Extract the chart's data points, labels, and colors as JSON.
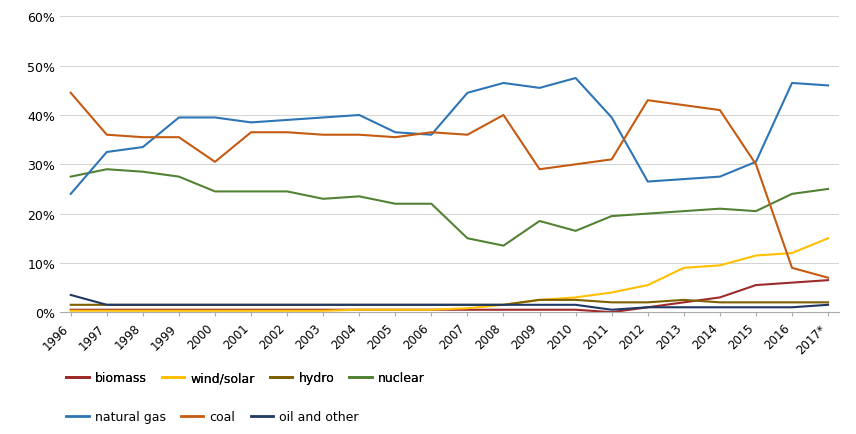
{
  "years": [
    1996,
    1997,
    1998,
    1999,
    2000,
    2001,
    2002,
    2003,
    2004,
    2005,
    2006,
    2007,
    2008,
    2009,
    2010,
    2011,
    2012,
    2013,
    2014,
    2015,
    2016,
    2017
  ],
  "year_labels": [
    "1996",
    "1997",
    "1998",
    "1999",
    "2000",
    "2001",
    "2002",
    "2003",
    "2004",
    "2005",
    "2006",
    "2007",
    "2008",
    "2009",
    "2010",
    "2011",
    "2012",
    "2013",
    "2014",
    "2015",
    "2016",
    "2017*"
  ],
  "series": [
    {
      "key": "biomass",
      "values": [
        0.5,
        0.5,
        0.5,
        0.5,
        0.5,
        0.5,
        0.5,
        0.5,
        0.5,
        0.5,
        0.5,
        0.5,
        0.5,
        0.5,
        0.5,
        0.0,
        1.0,
        2.0,
        3.0,
        5.5,
        6.0,
        6.5
      ],
      "color": "#9e2a2b",
      "label": "biomass"
    },
    {
      "key": "wind_solar",
      "values": [
        0.3,
        0.3,
        0.3,
        0.3,
        0.3,
        0.3,
        0.3,
        0.3,
        0.5,
        0.5,
        0.5,
        0.8,
        1.5,
        2.5,
        3.0,
        4.0,
        5.5,
        9.0,
        9.5,
        11.5,
        12.0,
        15.0
      ],
      "color": "#ffc000",
      "label": "wind/solar"
    },
    {
      "key": "hydro",
      "values": [
        1.5,
        1.5,
        1.5,
        1.5,
        1.5,
        1.5,
        1.5,
        1.5,
        1.5,
        1.5,
        1.5,
        1.5,
        1.5,
        2.5,
        2.5,
        2.0,
        2.0,
        2.5,
        2.0,
        2.0,
        2.0,
        2.0
      ],
      "color": "#7f6000",
      "label": "hydro"
    },
    {
      "key": "nuclear",
      "values": [
        27.5,
        29.0,
        28.5,
        27.5,
        24.5,
        24.5,
        24.5,
        23.0,
        23.5,
        22.0,
        22.0,
        15.0,
        13.5,
        18.5,
        16.5,
        19.5,
        20.0,
        20.5,
        21.0,
        20.5,
        24.0,
        25.0
      ],
      "color": "#548235",
      "label": "nuclear"
    },
    {
      "key": "natural_gas",
      "values": [
        24.0,
        32.5,
        33.5,
        39.5,
        39.5,
        38.5,
        39.0,
        39.5,
        40.0,
        36.5,
        36.0,
        44.5,
        46.5,
        45.5,
        47.5,
        39.5,
        26.5,
        27.0,
        27.5,
        30.5,
        46.5,
        46.0
      ],
      "color": "#2e75b6",
      "label": "natural gas"
    },
    {
      "key": "coal",
      "values": [
        44.5,
        36.0,
        35.5,
        35.5,
        30.5,
        36.5,
        36.5,
        36.0,
        36.0,
        35.5,
        36.5,
        36.0,
        40.0,
        29.0,
        30.0,
        31.0,
        43.0,
        42.0,
        41.0,
        30.0,
        9.0,
        7.0
      ],
      "color": "#c55a11",
      "label": "coal"
    },
    {
      "key": "oil_and_other",
      "values": [
        3.5,
        1.5,
        1.5,
        1.5,
        1.5,
        1.5,
        1.5,
        1.5,
        1.5,
        1.5,
        1.5,
        1.5,
        1.5,
        1.5,
        1.5,
        0.5,
        1.0,
        1.0,
        1.0,
        1.0,
        1.0,
        1.5
      ],
      "color": "#1f3864",
      "label": "oil and other"
    }
  ],
  "ylim": [
    0,
    60
  ],
  "yticks": [
    0,
    10,
    20,
    30,
    40,
    50,
    60
  ],
  "ytick_labels": [
    "0%",
    "10%",
    "20%",
    "30%",
    "40%",
    "50%",
    "60%"
  ],
  "background_color": "#ffffff",
  "grid_color": "#d3d3d3",
  "legend_row1": [
    0,
    1,
    2,
    3
  ],
  "legend_row2": [
    4,
    5,
    6
  ]
}
